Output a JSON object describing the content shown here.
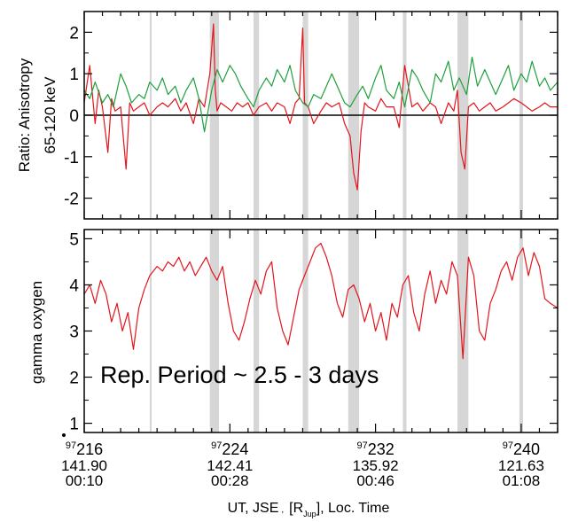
{
  "chart_data": [
    {
      "type": "line",
      "ylabel_line1": "Ratio: Anisotropy",
      "ylabel_line2": "65-120 keV",
      "xlim": [
        216,
        242
      ],
      "ylim": [
        -2.5,
        2.5
      ],
      "yticks": [
        "-2",
        "-1",
        "0",
        "1",
        "2"
      ],
      "ytick_values": [
        -2,
        -1,
        0,
        1,
        2
      ],
      "zero_line": 0,
      "shaded_bands": [
        [
          219.6,
          219.7
        ],
        [
          222.9,
          223.4
        ],
        [
          225.3,
          225.6
        ],
        [
          228.0,
          228.3
        ],
        [
          230.5,
          231.1
        ],
        [
          233.5,
          233.7
        ],
        [
          236.5,
          237.1
        ],
        [
          239.9,
          240.1
        ]
      ],
      "series": [
        {
          "color": "#e3141c",
          "x": [
            216.0,
            216.3,
            216.6,
            216.8,
            217.0,
            217.3,
            217.5,
            217.7,
            218.0,
            218.3,
            218.5,
            218.7,
            219.0,
            219.3,
            219.6,
            220.0,
            220.3,
            220.6,
            221.0,
            221.3,
            221.6,
            222.0,
            222.3,
            222.6,
            222.9,
            223.1,
            223.2,
            223.3,
            223.5,
            223.8,
            224.1,
            224.4,
            224.7,
            225.0,
            225.3,
            225.6,
            226.0,
            226.3,
            226.6,
            227.0,
            227.3,
            227.6,
            227.8,
            228.0,
            228.1,
            228.3,
            228.6,
            229.0,
            229.3,
            229.6,
            230.0,
            230.3,
            230.6,
            230.8,
            231.0,
            231.2,
            231.4,
            231.6,
            232.0,
            232.3,
            232.6,
            233.0,
            233.3,
            233.6,
            234.0,
            234.3,
            234.6,
            235.0,
            235.3,
            235.6,
            236.0,
            236.3,
            236.5,
            236.7,
            236.9,
            237.1,
            237.4,
            237.7,
            238.0,
            238.3,
            238.6,
            239.0,
            239.3,
            239.6,
            240.0,
            240.3,
            240.6,
            241.0,
            241.3,
            241.6,
            242.0
          ],
          "y": [
            0.3,
            1.2,
            -0.2,
            0.6,
            0.2,
            -0.9,
            0.4,
            0.1,
            0.2,
            -1.3,
            0.3,
            0.1,
            0.2,
            0.3,
            0.0,
            0.2,
            0.3,
            0.2,
            0.4,
            0.1,
            0.3,
            -0.2,
            0.4,
            0.2,
            1.0,
            2.2,
            0.6,
            0.1,
            0.3,
            0.2,
            0.1,
            0.3,
            0.2,
            0.3,
            0.0,
            0.2,
            0.3,
            0.1,
            0.3,
            0.2,
            -0.2,
            0.3,
            0.4,
            2.1,
            0.3,
            0.2,
            -0.2,
            0.1,
            0.3,
            0.2,
            0.3,
            -0.2,
            -0.5,
            -1.4,
            -1.8,
            -0.4,
            0.3,
            0.2,
            0.1,
            0.4,
            0.2,
            0.2,
            -0.3,
            1.2,
            0.2,
            0.3,
            0.1,
            0.3,
            0.2,
            -0.2,
            0.3,
            0.1,
            0.6,
            -0.9,
            -1.3,
            0.2,
            0.3,
            0.1,
            0.2,
            0.3,
            0.1,
            0.2,
            0.3,
            0.4,
            0.3,
            0.2,
            0.1,
            0.2,
            0.3,
            0.2,
            0.2
          ]
        },
        {
          "color": "#1fa03c",
          "x": [
            216.0,
            216.3,
            216.6,
            217.0,
            217.3,
            217.6,
            218.0,
            218.3,
            218.6,
            219.0,
            219.3,
            219.6,
            220.0,
            220.3,
            220.6,
            221.0,
            221.3,
            221.6,
            222.0,
            222.3,
            222.6,
            223.0,
            223.3,
            223.6,
            224.0,
            224.3,
            224.6,
            225.0,
            225.3,
            225.6,
            226.0,
            226.3,
            226.6,
            227.0,
            227.3,
            227.6,
            228.0,
            228.3,
            228.6,
            229.0,
            229.3,
            229.6,
            230.0,
            230.3,
            230.6,
            231.0,
            231.3,
            231.6,
            232.0,
            232.3,
            232.6,
            233.0,
            233.3,
            233.6,
            234.0,
            234.3,
            234.6,
            235.0,
            235.3,
            235.6,
            236.0,
            236.3,
            236.6,
            237.0,
            237.3,
            237.6,
            238.0,
            238.3,
            238.6,
            239.0,
            239.3,
            239.6,
            240.0,
            240.3,
            240.6,
            241.0,
            241.3,
            241.6,
            242.0
          ],
          "y": [
            0.6,
            0.4,
            0.8,
            0.3,
            0.5,
            0.2,
            1.0,
            0.7,
            0.3,
            0.5,
            0.4,
            0.8,
            0.6,
            0.9,
            0.5,
            0.7,
            0.3,
            0.6,
            0.9,
            0.4,
            -0.4,
            0.6,
            1.1,
            0.8,
            1.2,
            1.0,
            0.7,
            0.4,
            0.2,
            0.6,
            0.9,
            0.7,
            1.1,
            0.8,
            1.2,
            0.6,
            0.3,
            0.2,
            0.5,
            0.4,
            0.7,
            1.0,
            0.6,
            0.3,
            0.2,
            0.5,
            0.7,
            0.4,
            0.9,
            1.2,
            0.6,
            0.4,
            0.8,
            0.2,
            1.1,
            0.9,
            0.6,
            0.3,
            1.0,
            0.8,
            1.3,
            0.6,
            0.9,
            0.5,
            1.4,
            0.7,
            1.1,
            0.8,
            0.5,
            0.9,
            1.2,
            0.6,
            1.0,
            0.8,
            1.3,
            0.7,
            0.9,
            0.6,
            0.8
          ]
        }
      ]
    },
    {
      "type": "line",
      "ylabel": "gamma oxygen",
      "xlim": [
        216,
        242
      ],
      "ylim": [
        0.8,
        5.2
      ],
      "yticks": [
        "1",
        "2",
        "3",
        "4",
        "5"
      ],
      "ytick_values": [
        1,
        2,
        3,
        4,
        5
      ],
      "annotation": "Rep. Period ~ 2.5 - 3 days",
      "shaded_bands": [
        [
          219.6,
          219.7
        ],
        [
          222.9,
          223.4
        ],
        [
          225.3,
          225.6
        ],
        [
          228.0,
          228.3
        ],
        [
          230.5,
          231.1
        ],
        [
          233.5,
          233.7
        ],
        [
          236.5,
          237.1
        ],
        [
          239.9,
          240.1
        ]
      ],
      "series": [
        {
          "color": "#e3141c",
          "x": [
            216.0,
            216.3,
            216.6,
            216.9,
            217.2,
            217.5,
            217.8,
            218.1,
            218.4,
            218.7,
            219.0,
            219.3,
            219.6,
            220.0,
            220.3,
            220.6,
            220.9,
            221.2,
            221.5,
            221.8,
            222.1,
            222.4,
            222.7,
            223.0,
            223.3,
            223.6,
            223.9,
            224.2,
            224.5,
            224.8,
            225.1,
            225.4,
            225.7,
            226.0,
            226.3,
            226.6,
            226.9,
            227.2,
            227.5,
            227.8,
            228.1,
            228.4,
            228.7,
            229.0,
            229.3,
            229.6,
            229.9,
            230.2,
            230.5,
            230.8,
            231.1,
            231.4,
            231.7,
            232.0,
            232.3,
            232.6,
            232.9,
            233.2,
            233.5,
            233.8,
            234.1,
            234.4,
            234.7,
            235.0,
            235.3,
            235.6,
            235.9,
            236.2,
            236.5,
            236.8,
            237.1,
            237.4,
            237.7,
            238.0,
            238.3,
            238.6,
            238.9,
            239.2,
            239.5,
            239.8,
            240.1,
            240.4,
            240.7,
            241.0,
            241.3,
            241.6,
            242.0
          ],
          "y": [
            3.8,
            4.0,
            3.6,
            4.1,
            3.8,
            3.2,
            3.6,
            3.0,
            3.4,
            2.6,
            3.5,
            3.9,
            4.2,
            4.4,
            4.3,
            4.5,
            4.4,
            4.6,
            4.3,
            4.5,
            4.2,
            4.4,
            4.6,
            4.3,
            4.1,
            4.4,
            3.6,
            3.0,
            2.8,
            3.2,
            3.7,
            4.1,
            3.8,
            4.3,
            4.5,
            3.5,
            3.0,
            2.7,
            3.3,
            3.9,
            4.2,
            4.5,
            4.8,
            4.9,
            4.6,
            4.2,
            3.6,
            3.3,
            3.9,
            4.0,
            3.7,
            3.2,
            3.6,
            3.0,
            3.4,
            2.8,
            3.6,
            3.3,
            4.0,
            4.2,
            3.4,
            3.0,
            3.8,
            4.3,
            3.6,
            4.1,
            3.8,
            4.5,
            4.2,
            2.4,
            4.6,
            4.2,
            3.0,
            2.8,
            3.6,
            3.9,
            4.3,
            4.5,
            4.1,
            4.6,
            4.8,
            4.2,
            4.7,
            4.4,
            3.7,
            3.6,
            3.5
          ]
        }
      ]
    }
  ],
  "x_axis": {
    "tick_days": [
      216,
      224,
      232,
      240
    ],
    "tick_year_sup": [
      "97",
      "97",
      "97",
      "97"
    ],
    "tick_day_labels": [
      "216",
      "224",
      "232",
      "240"
    ],
    "tick_dist": [
      "141.90",
      "142.41",
      "135.92",
      "121.63"
    ],
    "tick_time": [
      "00:10",
      "00:28",
      "00:46",
      "01:08"
    ],
    "label_main": "UT, JSE",
    "label_comma1": ",",
    "label_bracket_open": "[R",
    "label_sub": "Jup",
    "label_bracket_close": "], Loc. Time"
  }
}
